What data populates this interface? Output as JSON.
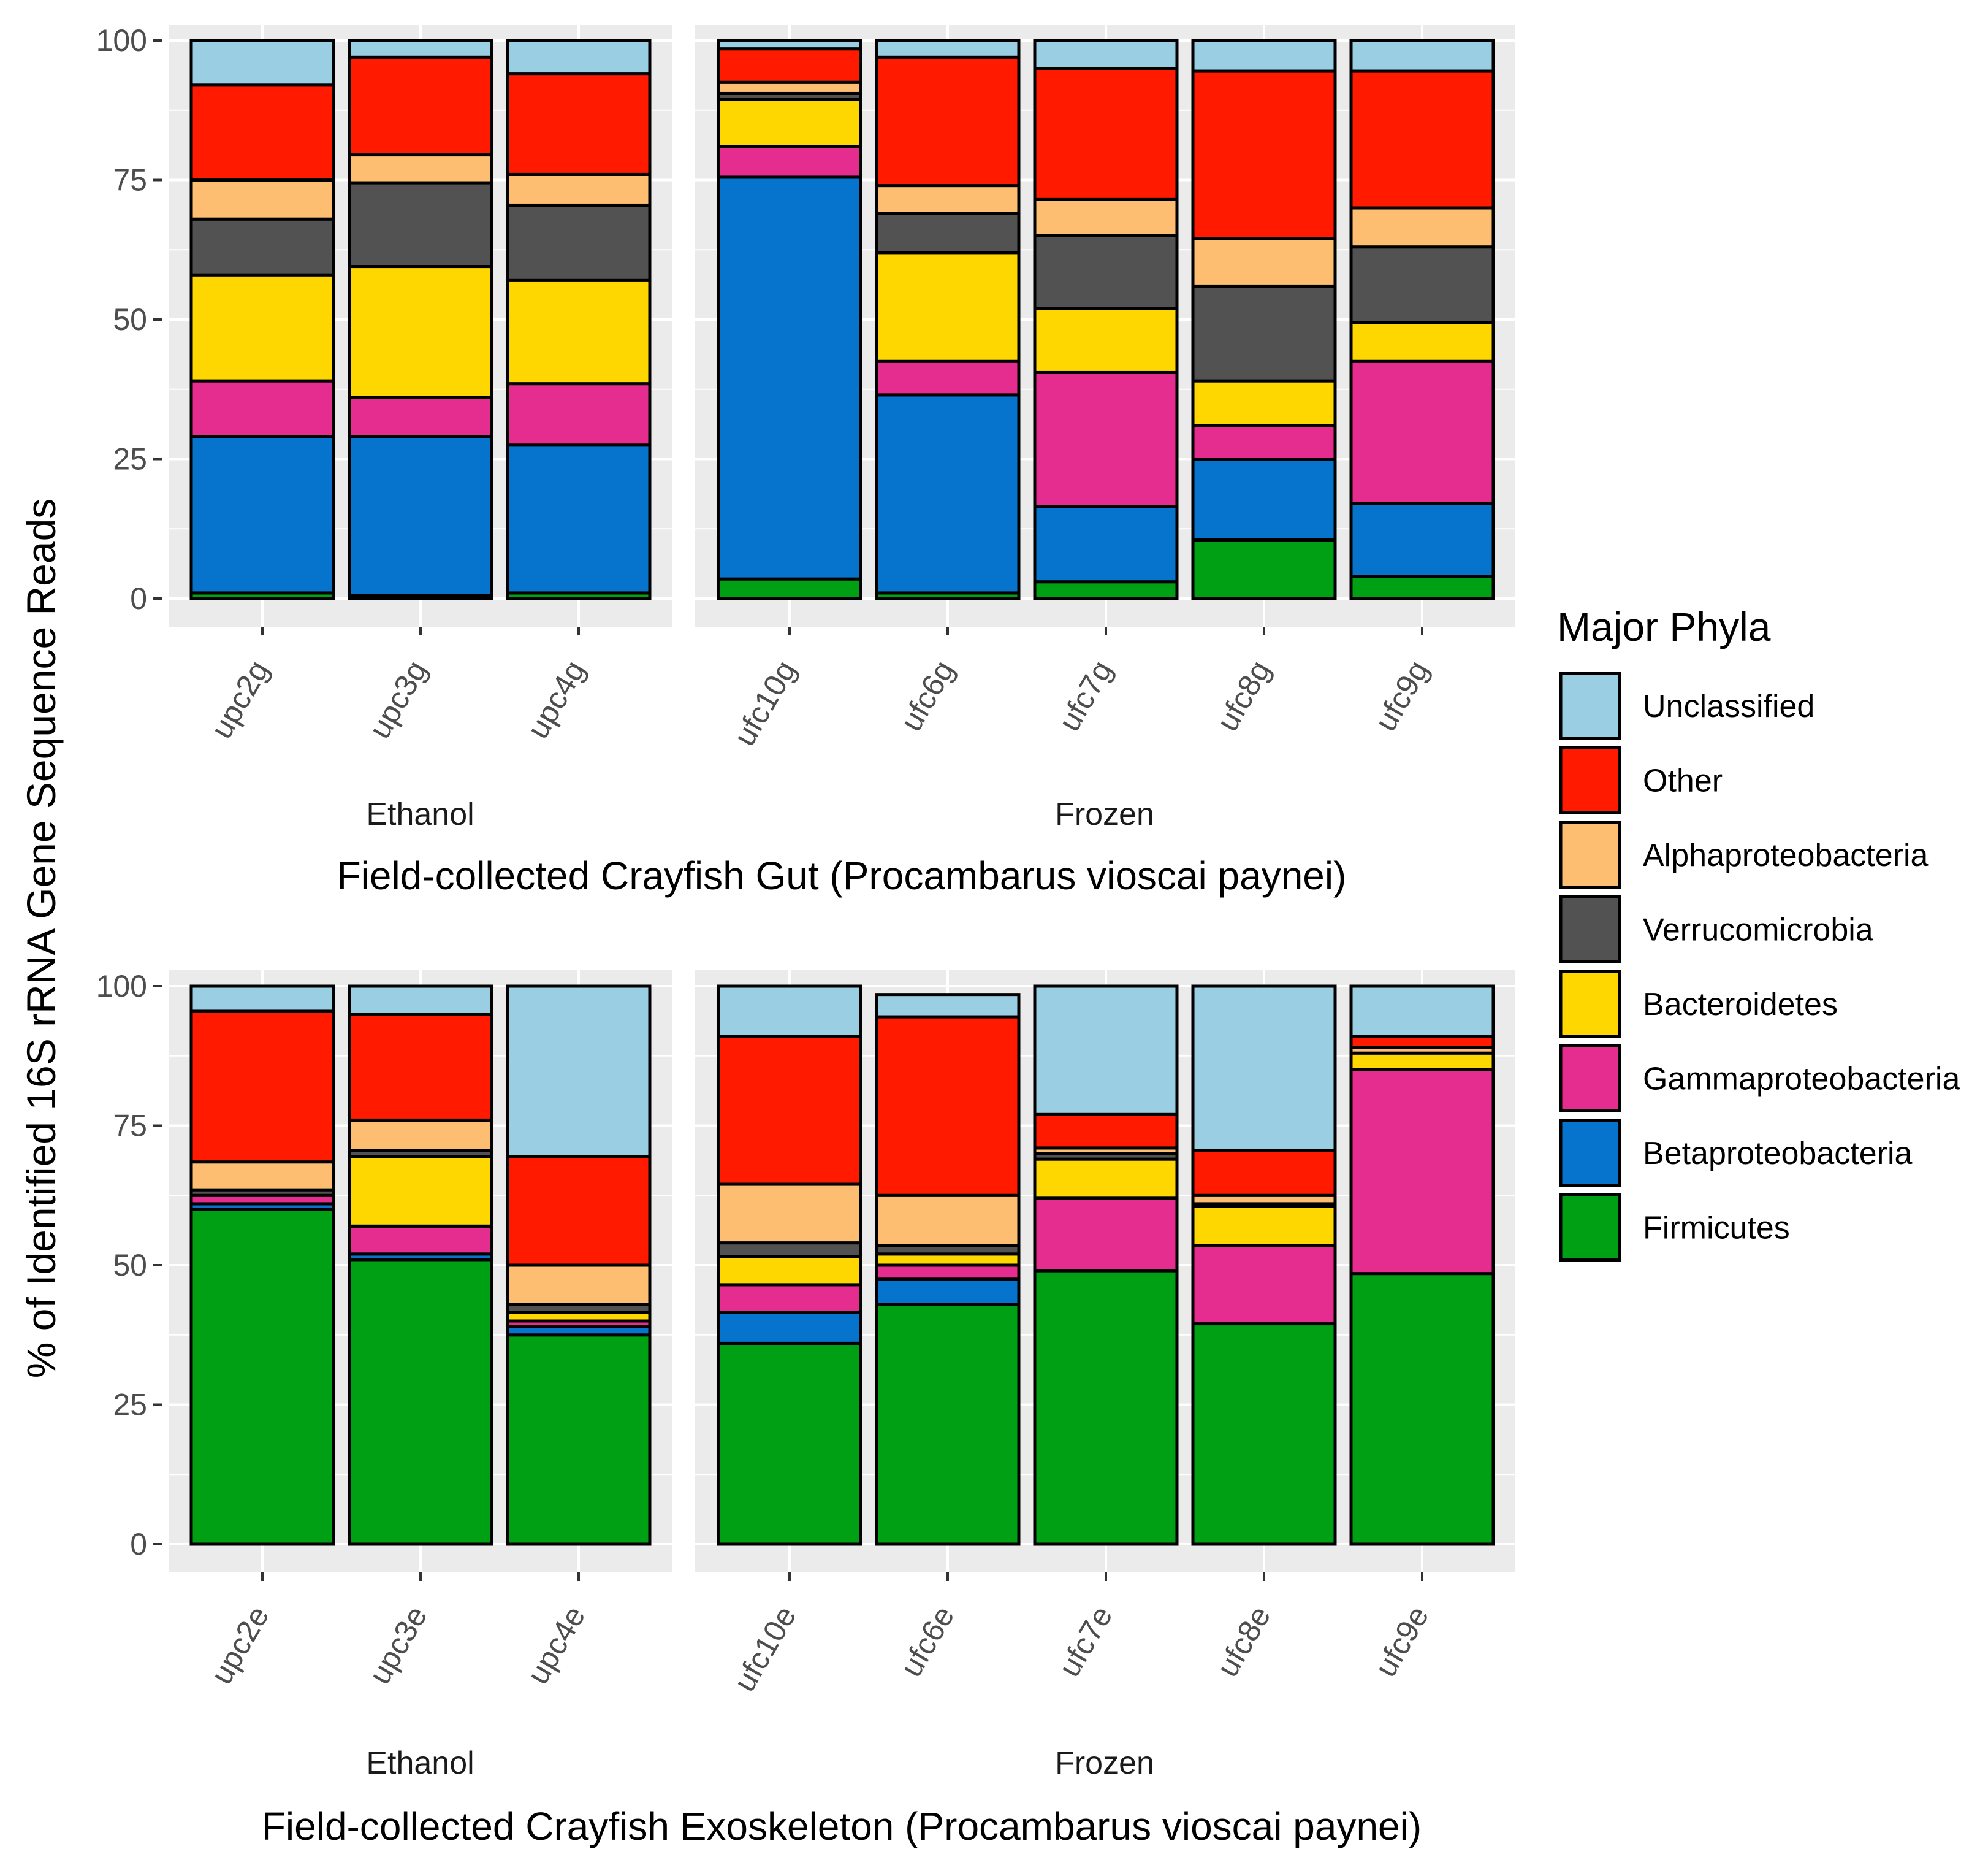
{
  "chart_data": {
    "type": "bar",
    "stacked": true,
    "ylabel": "% of Identified 16S rRNA Gene Sequence Reads",
    "ylim": [
      0,
      100
    ],
    "yticks": [
      "0",
      "25",
      "50",
      "75",
      "100"
    ],
    "legend": {
      "title": "Major Phyla",
      "placement": "right",
      "entries": [
        {
          "name": "Unclassified",
          "color": "#9ACEE3"
        },
        {
          "name": "Other",
          "color": "#FF1A00"
        },
        {
          "name": "Alphaproteobacteria",
          "color": "#FDBE72"
        },
        {
          "name": "Verrucomicrobia",
          "color": "#525252"
        },
        {
          "name": "Bacteroidetes",
          "color": "#FFD700"
        },
        {
          "name": "Gammaproteobacteria",
          "color": "#E52D90"
        },
        {
          "name": "Betaproteobacteria",
          "color": "#0674CC"
        },
        {
          "name": "Firmicutes",
          "color": "#00A014"
        }
      ]
    },
    "stack_order": [
      "Firmicutes",
      "Betaproteobacteria",
      "Gammaproteobacteria",
      "Bacteroidetes",
      "Verrucomicrobia",
      "Alphaproteobacteria",
      "Other",
      "Unclassified"
    ],
    "panels": [
      {
        "subtitle": "Field-collected Crayfish Gut (Procambarus vioscai paynei)",
        "facets": [
          {
            "label": "Ethanol",
            "samples": [
              {
                "name": "upc2g",
                "values": [
                  1,
                  28,
                  10,
                  19,
                  10,
                  7,
                  17,
                  8
                ]
              },
              {
                "name": "upc3g",
                "values": [
                  0.5,
                  28.5,
                  7,
                  23.5,
                  15,
                  5,
                  17.5,
                  3
                ]
              },
              {
                "name": "upc4g",
                "values": [
                  1,
                  26.5,
                  11,
                  18.5,
                  13.5,
                  5.5,
                  18,
                  6
                ]
              }
            ]
          },
          {
            "label": "Frozen",
            "samples": [
              {
                "name": "ufc10g",
                "values": [
                  3.5,
                  72,
                  5.5,
                  8.5,
                  1,
                  2,
                  6,
                  1.5
                ]
              },
              {
                "name": "ufc6g",
                "values": [
                  1,
                  35.5,
                  6,
                  19.5,
                  7,
                  5,
                  23,
                  3
                ]
              },
              {
                "name": "ufc7g",
                "values": [
                  3,
                  13.5,
                  24,
                  11.5,
                  13,
                  6.5,
                  23.5,
                  5
                ]
              },
              {
                "name": "ufc8g",
                "values": [
                  10.5,
                  14.5,
                  6,
                  8,
                  17,
                  8.5,
                  30,
                  5.5
                ]
              },
              {
                "name": "ufc9g",
                "values": [
                  4,
                  13,
                  25.5,
                  7,
                  13.5,
                  7,
                  24.5,
                  5.5
                ]
              }
            ]
          }
        ]
      },
      {
        "subtitle": "Field-collected Crayfish Exoskeleton (Procambarus vioscai paynei)",
        "facets": [
          {
            "label": "Ethanol",
            "samples": [
              {
                "name": "upc2e",
                "values": [
                  60,
                  1,
                  1.5,
                  0,
                  1,
                  5,
                  27,
                  4.5
                ]
              },
              {
                "name": "upc3e",
                "values": [
                  51,
                  1,
                  5,
                  12.5,
                  1,
                  5.5,
                  19,
                  5
                ]
              },
              {
                "name": "upc4e",
                "values": [
                  37.5,
                  1.5,
                  1,
                  1.5,
                  1.5,
                  7,
                  19.5,
                  30.5
                ]
              }
            ]
          },
          {
            "label": "Frozen",
            "samples": [
              {
                "name": "ufc10e",
                "values": [
                  36,
                  5.5,
                  5,
                  5,
                  2.5,
                  10.5,
                  26.5,
                  9
                ]
              },
              {
                "name": "ufc6e",
                "values": [
                  43,
                  4.5,
                  2.5,
                  2,
                  1.5,
                  9,
                  32,
                  4
                ]
              },
              {
                "name": "ufc7e",
                "values": [
                  49,
                  0,
                  13,
                  7,
                  1,
                  1,
                  6,
                  23
                ]
              },
              {
                "name": "ufc8e",
                "values": [
                  39.5,
                  0,
                  14,
                  7,
                  0.5,
                  1.5,
                  8,
                  29.5
                ]
              },
              {
                "name": "ufc9e",
                "values": [
                  48.5,
                  0,
                  36.5,
                  3,
                  0,
                  1,
                  2,
                  9
                ]
              }
            ]
          }
        ]
      }
    ]
  }
}
